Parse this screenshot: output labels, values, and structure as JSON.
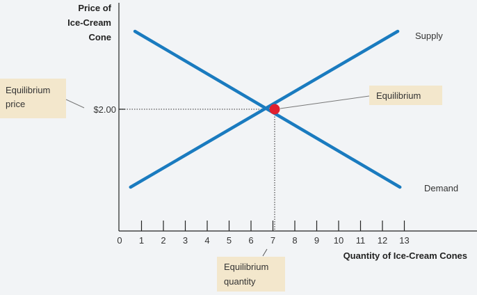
{
  "chart_data": {
    "type": "line",
    "ylabel_lines": [
      "Price of",
      "Ice-Cream",
      "Cone"
    ],
    "xlabel": "Quantity of Ice-Cream Cones",
    "xlim": [
      0,
      13
    ],
    "x_ticks": [
      "0",
      "1",
      "2",
      "3",
      "4",
      "5",
      "6",
      "7",
      "8",
      "9",
      "10",
      "11",
      "12",
      "13"
    ],
    "y_tick": {
      "label": "$2.00",
      "value": 2.0
    },
    "series": [
      {
        "name": "Supply",
        "color": "#1a7bbf",
        "points": [
          [
            0.5,
            0.6
          ],
          [
            12.7,
            3.4
          ]
        ]
      },
      {
        "name": "Demand",
        "color": "#1a7bbf",
        "points": [
          [
            0.7,
            3.4
          ],
          [
            12.8,
            0.6
          ]
        ]
      }
    ],
    "equilibrium": {
      "quantity": 7,
      "price": 2.0,
      "marker_color": "#e0202f"
    },
    "annotations": {
      "equilibrium": "Equilibrium",
      "equilibrium_price": [
        "Equilibrium",
        "price"
      ],
      "equilibrium_quantity": [
        "Equilibrium",
        "quantity"
      ]
    },
    "callout_fill": "#f3e7cc"
  }
}
